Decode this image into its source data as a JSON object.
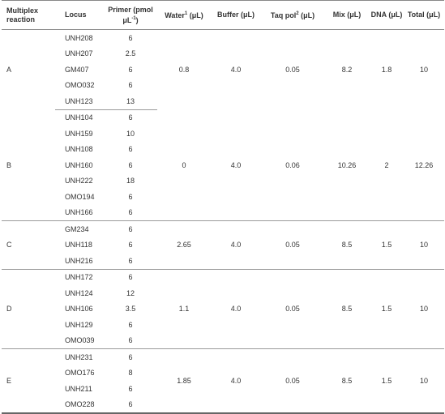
{
  "headers": {
    "multiplex": "Multiplex reaction",
    "locus": "Locus",
    "primer": "Primer (pmol μL",
    "primer_sup": "-1",
    "primer_close": ")",
    "water": "Water",
    "water_sup": "1",
    "water_unit": " (μL)",
    "buffer": "Buffer (μL)",
    "taq": "Taq pol",
    "taq_sup": "2",
    "taq_unit": " (μL)",
    "mix": "Mix (μL)",
    "dna": "DNA (μL)",
    "total": "Total (μL)"
  },
  "groups": [
    {
      "name": "A",
      "rows": [
        {
          "locus": "UNH208",
          "primer": "6"
        },
        {
          "locus": "UNH207",
          "primer": "2.5"
        },
        {
          "locus": "GM407",
          "primer": "6"
        },
        {
          "locus": "OMO032",
          "primer": "6"
        },
        {
          "locus": "UNH123",
          "primer": "13"
        }
      ],
      "water": "0.8",
      "buffer": "4.0",
      "taq": "0.05",
      "mix": "8.2",
      "dna": "1.8",
      "total": "10"
    },
    {
      "name": "B",
      "rows": [
        {
          "locus": "UNH104",
          "primer": "6"
        },
        {
          "locus": "UNH159",
          "primer": "10"
        },
        {
          "locus": "UNH108",
          "primer": "6"
        },
        {
          "locus": "UNH160",
          "primer": "6"
        },
        {
          "locus": "UNH222",
          "primer": "18"
        },
        {
          "locus": "OMO194",
          "primer": "6"
        },
        {
          "locus": "UNH166",
          "primer": "6"
        }
      ],
      "water": "0",
      "buffer": "4.0",
      "taq": "0.06",
      "mix": "10.26",
      "dna": "2",
      "total": "12.26"
    },
    {
      "name": "C",
      "rows": [
        {
          "locus": "GM234",
          "primer": "6"
        },
        {
          "locus": "UNH118",
          "primer": "6"
        },
        {
          "locus": "UNH216",
          "primer": "6"
        }
      ],
      "water": "2.65",
      "buffer": "4.0",
      "taq": "0.05",
      "mix": "8.5",
      "dna": "1.5",
      "total": "10"
    },
    {
      "name": "D",
      "rows": [
        {
          "locus": "UNH172",
          "primer": "6"
        },
        {
          "locus": "UNH124",
          "primer": "12"
        },
        {
          "locus": "UNH106",
          "primer": "3.5"
        },
        {
          "locus": "UNH129",
          "primer": "6"
        },
        {
          "locus": "OMO039",
          "primer": "6"
        }
      ],
      "water": "1.1",
      "buffer": "4.0",
      "taq": "0.05",
      "mix": "8.5",
      "dna": "1.5",
      "total": "10"
    },
    {
      "name": "E",
      "rows": [
        {
          "locus": "UNH231",
          "primer": "6"
        },
        {
          "locus": "OMO176",
          "primer": "8"
        },
        {
          "locus": "UNH211",
          "primer": "6"
        },
        {
          "locus": "OMO228",
          "primer": "6"
        }
      ],
      "water": "1.85",
      "buffer": "4.0",
      "taq": "0.05",
      "mix": "8.5",
      "dna": "1.5",
      "total": "10"
    }
  ]
}
